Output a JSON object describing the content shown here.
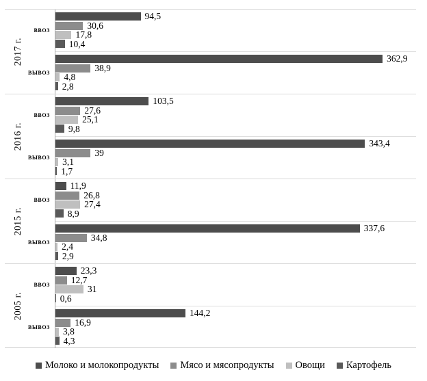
{
  "chart_data": {
    "type": "bar",
    "orientation": "horizontal",
    "title": "",
    "value_axis": {
      "min": 0,
      "max": 400,
      "visible": false
    },
    "legend_position": "bottom",
    "series": [
      {
        "name": "Молоко и молокопродукты",
        "color": "#4d4d4d"
      },
      {
        "name": "Мясо и мясопродукты",
        "color": "#8c8c8c"
      },
      {
        "name": "Овощи",
        "color": "#bfbfbf"
      },
      {
        "name": "Картофель",
        "color": "#595959"
      }
    ],
    "groups": [
      {
        "year": "2017 г.",
        "rows": [
          {
            "label": "ввоз",
            "values": [
              94.5,
              30.6,
              17.8,
              10.4
            ],
            "display": [
              "94,5",
              "30,6",
              "17,8",
              "10,4"
            ]
          },
          {
            "label": "вывоз",
            "values": [
              362.9,
              38.9,
              4.8,
              2.8
            ],
            "display": [
              "362,9",
              "38,9",
              "4,8",
              "2,8"
            ]
          }
        ]
      },
      {
        "year": "2016 г.",
        "rows": [
          {
            "label": "ввоз",
            "values": [
              103.5,
              27.6,
              25.1,
              9.8
            ],
            "display": [
              "103,5",
              "27,6",
              "25,1",
              "9,8"
            ]
          },
          {
            "label": "вывоз",
            "values": [
              343.4,
              39,
              3.1,
              1.7
            ],
            "display": [
              "343,4",
              "39",
              "3,1",
              "1,7"
            ]
          }
        ]
      },
      {
        "year": "2015 г.",
        "rows": [
          {
            "label": "ввоз",
            "values": [
              11.9,
              26.8,
              27.4,
              8.9
            ],
            "display": [
              "11,9",
              "26,8",
              "27,4",
              "8,9"
            ]
          },
          {
            "label": "вывоз",
            "values": [
              337.6,
              34.8,
              2.4,
              2.9
            ],
            "display": [
              "337,6",
              "34,8",
              "2,4",
              "2,9"
            ]
          }
        ]
      },
      {
        "year": "2005 г.",
        "rows": [
          {
            "label": "ввоз",
            "values": [
              23.3,
              12.7,
              31,
              0.6
            ],
            "display": [
              "23,3",
              "12,7",
              "31",
              "0,6"
            ]
          },
          {
            "label": "вывоз",
            "values": [
              144.2,
              16.9,
              3.8,
              4.3
            ],
            "display": [
              "144,2",
              "16,9",
              "3,8",
              "4,3"
            ]
          }
        ]
      }
    ],
    "colors": {
      "year_separator_line": "#d9d9d9",
      "subgroup_separator_line": "#dedede",
      "category_axis_line": "#a6a6a6",
      "text": "#000000",
      "background": "#ffffff"
    }
  }
}
